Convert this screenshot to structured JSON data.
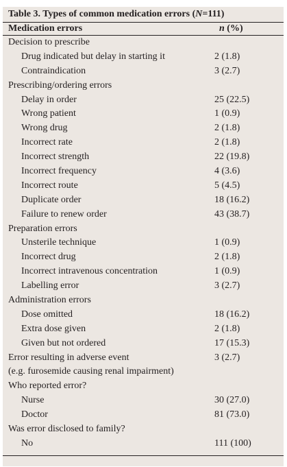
{
  "table": {
    "caption_prefix": "Table 3. Types of common medication errors (",
    "caption_n": "N",
    "caption_suffix": "=111)",
    "header_col1": "Medication errors",
    "header_col2_n": "n",
    "header_col2_rest": " (%)",
    "rows": [
      {
        "label": "Decision to prescribe",
        "value": "",
        "indent": false
      },
      {
        "label": "Drug indicated but delay in starting it",
        "value": "2 (1.8)",
        "indent": true
      },
      {
        "label": "Contraindication",
        "value": "3 (2.7)",
        "indent": true
      },
      {
        "label": "Prescribing/ordering errors",
        "value": "",
        "indent": false
      },
      {
        "label": "Delay in order",
        "value": "25 (22.5)",
        "indent": true
      },
      {
        "label": "Wrong patient",
        "value": "1 (0.9)",
        "indent": true
      },
      {
        "label": "Wrong drug",
        "value": "2 (1.8)",
        "indent": true
      },
      {
        "label": "Incorrect rate",
        "value": "2 (1.8)",
        "indent": true
      },
      {
        "label": "Incorrect strength",
        "value": "22 (19.8)",
        "indent": true
      },
      {
        "label": "Incorrect frequency",
        "value": "4 (3.6)",
        "indent": true
      },
      {
        "label": "Incorrect route",
        "value": "5 (4.5)",
        "indent": true
      },
      {
        "label": "Duplicate order",
        "value": "18 (16.2)",
        "indent": true
      },
      {
        "label": "Failure to renew order",
        "value": "43 (38.7)",
        "indent": true
      },
      {
        "label": "Preparation errors",
        "value": "",
        "indent": false
      },
      {
        "label": "Unsterile technique",
        "value": "1 (0.9)",
        "indent": true
      },
      {
        "label": "Incorrect drug",
        "value": "2 (1.8)",
        "indent": true
      },
      {
        "label": "Incorrect intravenous concentration",
        "value": "1 (0.9)",
        "indent": true
      },
      {
        "label": "Labelling error",
        "value": "3 (2.7)",
        "indent": true
      },
      {
        "label": "Administration errors",
        "value": "",
        "indent": false
      },
      {
        "label": "Dose omitted",
        "value": "18 (16.2)",
        "indent": true
      },
      {
        "label": "Extra dose given",
        "value": "2 (1.8)",
        "indent": true
      },
      {
        "label": "Given but not ordered",
        "value": "17 (15.3)",
        "indent": true
      },
      {
        "label": "Error resulting in adverse event",
        "value": "3 (2.7)",
        "indent": false
      },
      {
        "label": "(e.g. furosemide causing renal impairment)",
        "value": "",
        "indent": false
      },
      {
        "label": "Who reported error?",
        "value": "",
        "indent": false
      },
      {
        "label": "Nurse",
        "value": "30 (27.0)",
        "indent": true
      },
      {
        "label": "Doctor",
        "value": "81 (73.0)",
        "indent": true
      },
      {
        "label": "Was error disclosed to family?",
        "value": "",
        "indent": false
      },
      {
        "label": "No",
        "value": "111 (100)",
        "indent": true
      }
    ]
  },
  "colors": {
    "background": "#ece7e2",
    "text": "#231f20",
    "rule": "#231f20"
  }
}
